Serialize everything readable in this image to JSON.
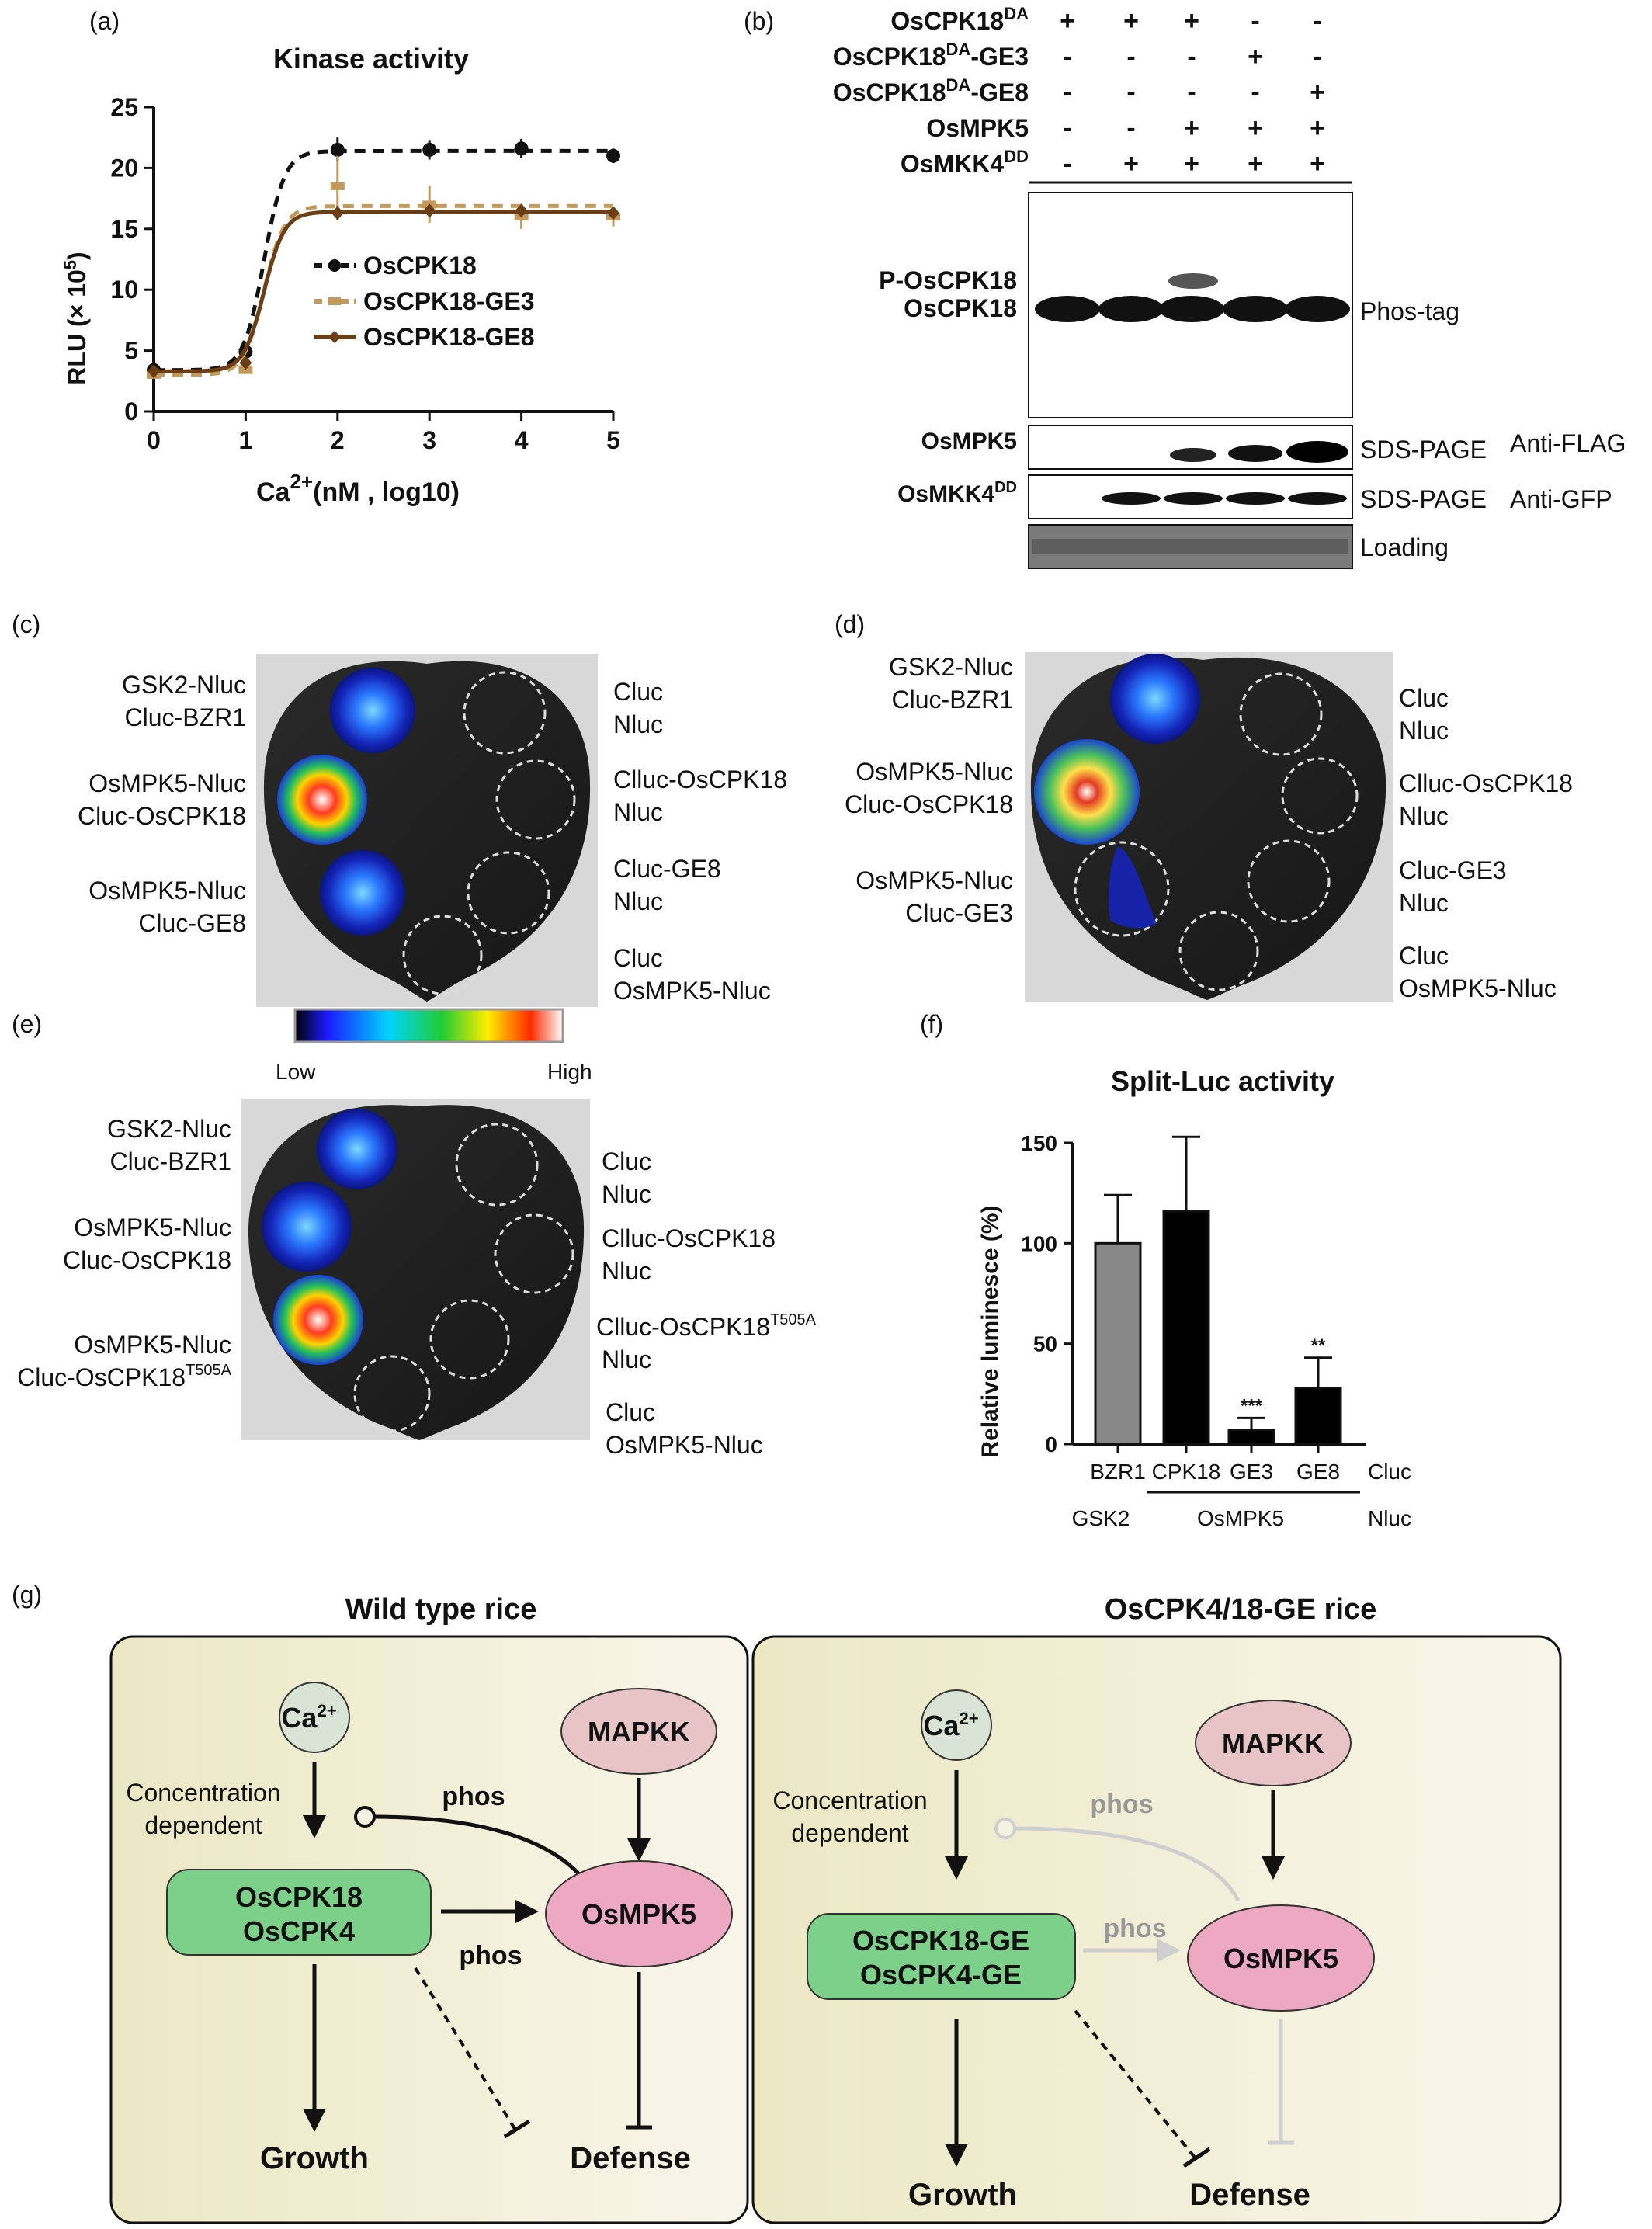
{
  "panel_letters": [
    "(a)",
    "(b)",
    "(c)",
    "(d)",
    "(e)",
    "(f)",
    "(g)"
  ],
  "panel_a": {
    "chart_data": {
      "type": "line",
      "title": "Kinase activity",
      "xlabel": "Ca",
      "xlabel_sup": "2+",
      "xlabel_rest": "(nM , log10)",
      "ylabel": "RLU (× 10",
      "ylabel_sup": "5",
      "ylabel_end": ")",
      "xlim": [
        0,
        5
      ],
      "ylim": [
        0,
        25
      ],
      "x_ticks": [
        0,
        1,
        2,
        3,
        4,
        5
      ],
      "y_ticks": [
        0,
        5,
        10,
        15,
        20,
        25
      ],
      "legend_position": "center-right",
      "series": [
        {
          "name": "OsCPK18",
          "color": "#111111",
          "dash": "dashed",
          "marker": "circle",
          "x": [
            0,
            1,
            2,
            3,
            4,
            5
          ],
          "y": [
            3.4,
            4.9,
            21.5,
            21.5,
            21.6,
            21.0
          ],
          "err": [
            0.3,
            0.3,
            1.0,
            0.8,
            0.8,
            0.6
          ]
        },
        {
          "name": "OsCPK18-GE3",
          "color": "#c49a5c",
          "dash": "dashed",
          "marker": "square",
          "x": [
            0,
            1,
            2,
            3,
            4,
            5
          ],
          "y": [
            3.0,
            3.4,
            18.5,
            17.0,
            16.0,
            16.0
          ],
          "err": [
            0.2,
            0.3,
            2.5,
            1.5,
            1.0,
            0.8
          ]
        },
        {
          "name": "OsCPK18-GE8",
          "color": "#6b3e15",
          "dash": "solid",
          "marker": "diamond",
          "x": [
            0,
            1,
            2,
            3,
            4,
            5
          ],
          "y": [
            3.3,
            4.0,
            16.3,
            16.5,
            16.5,
            16.3
          ],
          "err": [
            0.2,
            0.3,
            0.6,
            0.5,
            0.5,
            0.5
          ]
        }
      ]
    }
  },
  "panel_b": {
    "rows": [
      {
        "label": "OsCPK18",
        "sup": "DA",
        "signs": [
          "+",
          "+",
          "+",
          "-",
          "-"
        ]
      },
      {
        "label": "OsCPK18",
        "sup": "DA",
        "label_end": "-GE3",
        "signs": [
          "-",
          "-",
          "-",
          "+",
          "-"
        ]
      },
      {
        "label": "OsCPK18",
        "sup": "DA",
        "label_end": "-GE8",
        "signs": [
          "-",
          "-",
          "-",
          "-",
          "+"
        ]
      },
      {
        "label": "OsMPK5",
        "sup": "",
        "signs": [
          "-",
          "-",
          "+",
          "+",
          "+"
        ]
      },
      {
        "label": "OsMKK4",
        "sup": "DD",
        "signs": [
          "-",
          "+",
          "+",
          "+",
          "+"
        ]
      }
    ],
    "blot_left_labels": [
      "P-OsCPK18",
      "OsCPK18"
    ],
    "phos_tag_label": "Phos-tag",
    "mpk5_label": "OsMPK5",
    "mkk4_label": "OsMKK4",
    "mkk4_sup": "DD",
    "sds_label": "SDS-PAGE",
    "anti_flag": "Anti-FLAG",
    "anti_gfp": "Anti-GFP",
    "loading": "Loading"
  },
  "panel_c": {
    "left": [
      [
        "GSK2-Nluc",
        "Cluc-BZR1"
      ],
      [
        "OsMPK5-Nluc",
        "Cluc-OsCPK18"
      ],
      [
        "OsMPK5-Nluc",
        "Cluc-GE8"
      ]
    ],
    "right": [
      [
        "Cluc",
        "Nluc"
      ],
      [
        "Clluc-OsCPK18",
        "Nluc"
      ],
      [
        "Cluc-GE8",
        "Nluc"
      ],
      [
        "Cluc",
        "OsMPK5-Nluc"
      ]
    ]
  },
  "panel_d": {
    "left": [
      [
        "GSK2-Nluc",
        "Cluc-BZR1"
      ],
      [
        "OsMPK5-Nluc",
        "Cluc-OsCPK18"
      ],
      [
        "OsMPK5-Nluc",
        "Cluc-GE3"
      ]
    ],
    "right": [
      [
        "Cluc",
        "Nluc"
      ],
      [
        "Clluc-OsCPK18",
        "Nluc"
      ],
      [
        "Cluc-GE3",
        "Nluc"
      ],
      [
        "Cluc",
        "OsMPK5-Nluc"
      ]
    ]
  },
  "panel_e": {
    "left": [
      [
        "GSK2-Nluc",
        "Cluc-BZR1"
      ],
      [
        "OsMPK5-Nluc",
        "Cluc-OsCPK18"
      ],
      [
        "OsMPK5-Nluc",
        "Cluc-OsCPK18"
      ]
    ],
    "left_sup": "T505A",
    "right": [
      [
        "Cluc",
        "Nluc"
      ],
      [
        "Clluc-OsCPK18",
        "Nluc"
      ],
      [
        "Clluc-OsCPK18",
        "Nluc"
      ],
      [
        "Cluc",
        "OsMPK5-Nluc"
      ]
    ],
    "right_sup": "T505A"
  },
  "colorbar": {
    "low": "Low",
    "high": "High"
  },
  "panel_f": {
    "chart_data": {
      "type": "bar",
      "title": "Split-Luc activity",
      "ylabel": "Relative luminesce (%)",
      "ylim": [
        0,
        150
      ],
      "y_ticks": [
        0,
        50,
        100,
        150
      ],
      "categories": [
        "BZR1",
        "CPK18",
        "GE3",
        "GE8"
      ],
      "values": [
        100,
        116,
        7,
        28
      ],
      "errors": [
        24,
        37,
        6,
        15
      ],
      "colors": [
        "#888888",
        "#000000",
        "#000000",
        "#000000"
      ],
      "significance": [
        "",
        "",
        "***",
        "**"
      ],
      "row_label_cluc": "Cluc",
      "row_label_nluc": "Nluc",
      "group_gsk2": "GSK2",
      "group_osmpk5": "OsMPK5"
    }
  },
  "panel_g": {
    "wt_title": "Wild type rice",
    "ge_title": "OsCPK4/18-GE rice",
    "ca": "Ca",
    "ca_sup": "2+",
    "mapkk": "MAPKK",
    "conc_line1": "Concentration",
    "conc_line2": "dependent",
    "phos": "phos",
    "wt_cpk_line1": "OsCPK18",
    "wt_cpk_line2": "OsCPK4",
    "ge_cpk_line1": "OsCPK18-GE",
    "ge_cpk_line2": "OsCPK4-GE",
    "mpk5": "OsMPK5",
    "growth": "Growth",
    "defense": "Defense"
  }
}
